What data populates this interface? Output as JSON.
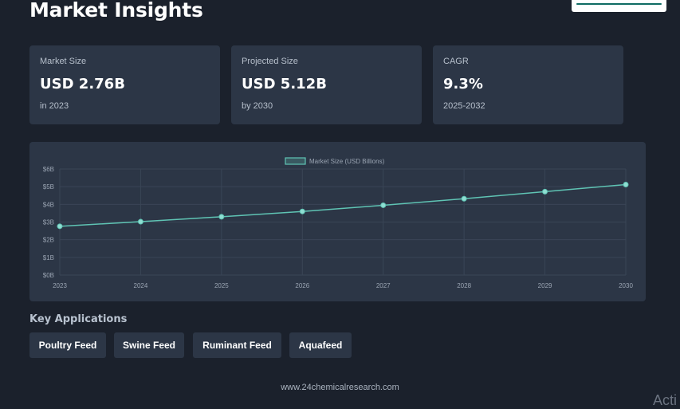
{
  "header": {
    "title": "Market Insights"
  },
  "stats": [
    {
      "label": "Market Size",
      "value": "USD 2.76B",
      "sub": "in 2023"
    },
    {
      "label": "Projected Size",
      "value": "USD 5.12B",
      "sub": "by 2030"
    },
    {
      "label": "CAGR",
      "value": "9.3%",
      "sub": "2025-2032"
    }
  ],
  "chart_data": {
    "type": "line",
    "x": [
      "2023",
      "2024",
      "2025",
      "2026",
      "2027",
      "2028",
      "2029",
      "2030"
    ],
    "series": [
      {
        "name": "Market Size (USD Billions)",
        "values": [
          2.76,
          3.02,
          3.3,
          3.6,
          3.95,
          4.32,
          4.72,
          5.12
        ]
      }
    ],
    "yticks": [
      "$0B",
      "$1B",
      "$2B",
      "$3B",
      "$4B",
      "$5B",
      "$6B"
    ],
    "ylim": [
      0,
      6
    ],
    "grid": true,
    "legend_position": "top-center",
    "line_color": "#5fc4b4"
  },
  "applications": {
    "title": "Key Applications",
    "items": [
      "Poultry Feed",
      "Swine Feed",
      "Ruminant Feed",
      "Aquafeed"
    ]
  },
  "footer": {
    "text": "www.24chemicalresearch.com"
  },
  "watermark": {
    "text": "Acti"
  }
}
